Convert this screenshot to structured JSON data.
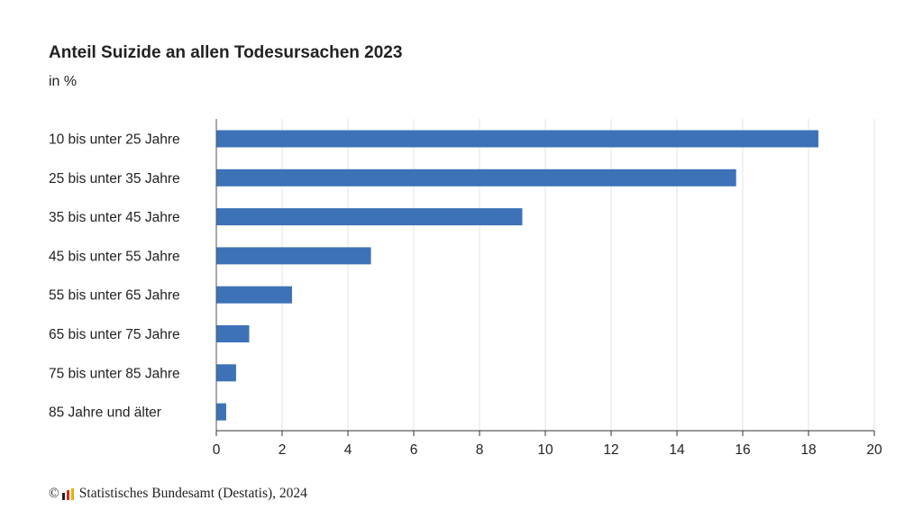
{
  "chart_data": {
    "type": "bar",
    "orientation": "horizontal",
    "title": "Anteil Suizide an allen Todesursachen 2023",
    "subtitle": "in %",
    "categories": [
      "10 bis unter 25 Jahre",
      "25 bis unter 35 Jahre",
      "35 bis unter 45 Jahre",
      "45 bis unter 55 Jahre",
      "55 bis unter 65 Jahre",
      "65 bis unter 75 Jahre",
      "75 bis unter 85 Jahre",
      "85 Jahre und älter"
    ],
    "values": [
      18.3,
      15.8,
      9.3,
      4.7,
      2.3,
      1.0,
      0.6,
      0.3
    ],
    "xlim": [
      0,
      20
    ],
    "xticks": [
      "0",
      "2",
      "4",
      "6",
      "8",
      "10",
      "12",
      "14",
      "16",
      "18",
      "20"
    ],
    "grid": true,
    "bar_color": "#3d72b8"
  },
  "source": {
    "copyright": "©",
    "text": "Statistisches Bundesamt (Destatis), 2024",
    "logo_icon": "destatis-logo-icon"
  }
}
